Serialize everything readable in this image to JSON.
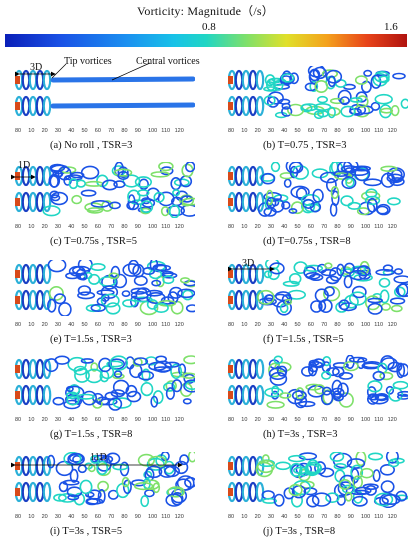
{
  "colorbar": {
    "title": "Vorticity:  Magnitude（/s）",
    "mid_label": "0.8",
    "max_label": "1.6"
  },
  "axis_ticks": [
    "80",
    "10",
    "20",
    "30",
    "40",
    "50",
    "60",
    "70",
    "80",
    "90",
    "100",
    "110",
    "120"
  ],
  "panels": [
    {
      "caption": "(a)  No roll , TSR=3",
      "variant": "noroll"
    },
    {
      "caption": "(b)  T=0.75 , TSR=3",
      "variant": "dense"
    },
    {
      "caption": "(c)  T=0.75s , TSR=5",
      "variant": "dense"
    },
    {
      "caption": "(d)  T=0.75s , TSR=8",
      "variant": "dense"
    },
    {
      "caption": "(e)  T=1.5s , TSR=3",
      "variant": "dense"
    },
    {
      "caption": "(f)  T=1.5s , TSR=5",
      "variant": "dense"
    },
    {
      "caption": "(g)  T=1.5s , TSR=8",
      "variant": "dense"
    },
    {
      "caption": "(h)  T=3s , TSR=3",
      "variant": "dense"
    },
    {
      "caption": "(i)  T=3s , TSR=5",
      "variant": "dense"
    },
    {
      "caption": "(j)  T=3s , TSR=8",
      "variant": "dense"
    }
  ],
  "annotations": {
    "a_span": "3D",
    "a_tip": "Tip vortices",
    "a_central": "Central vortices",
    "c_span": "1D",
    "f_span": "3D",
    "i_span": "11D"
  },
  "colors": {
    "cold": "#1a52e6",
    "mid": "#20d6c4",
    "hot": "#e8441a"
  }
}
